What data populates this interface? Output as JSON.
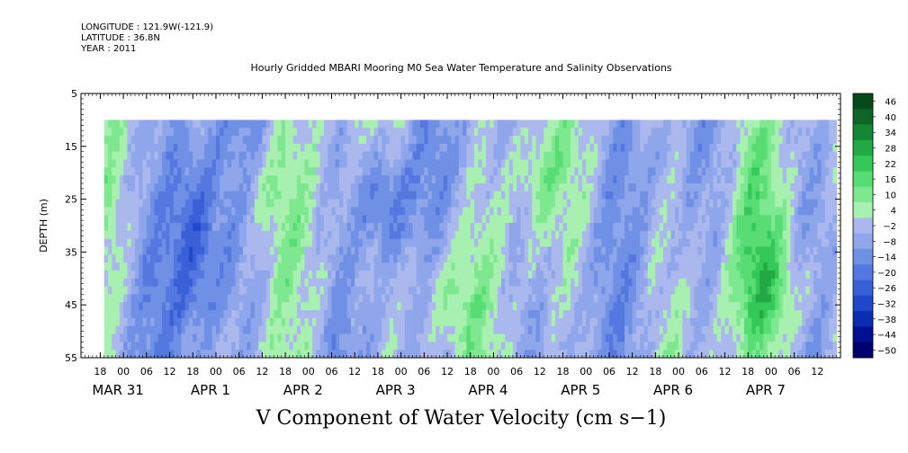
{
  "header": {
    "longitude": "LONGITUDE : 121.9W(-121.9)",
    "latitude": "LATITUDE : 36.8N",
    "year": "YEAR : 2011"
  },
  "chart_data": {
    "type": "heatmap",
    "title": "Hourly Gridded MBARI Mooring M0 Sea Water Temperature and Salinity Observations",
    "xlabel": "V Component of Water Velocity (cm s−1)",
    "ylabel": "DEPTH (m)",
    "grid": false,
    "ylim": [
      55,
      5
    ],
    "y_ticks": [
      5,
      15,
      25,
      35,
      45,
      55
    ],
    "x_range_hours": [
      "2011-03-30T13:00",
      "2011-04-07T18:00"
    ],
    "data_range_hours": [
      "2011-03-30T19:00",
      "2011-04-07T17:00"
    ],
    "depth_range_data": [
      10,
      55
    ],
    "x_hour_labels": [
      "18",
      "00",
      "06",
      "12",
      "18",
      "00",
      "06",
      "12",
      "18",
      "00",
      "06",
      "12",
      "18",
      "00",
      "06",
      "12",
      "18",
      "00",
      "06",
      "12",
      "18",
      "00",
      "06",
      "12",
      "18",
      "00",
      "06",
      "12",
      "18",
      "00",
      "06",
      "12"
    ],
    "x_day_labels": [
      "MAR 31",
      "APR  1",
      "APR  2",
      "APR  3",
      "APR  4",
      "APR  5",
      "APR  6",
      "APR  7"
    ],
    "colorbar": {
      "levels": [
        -50,
        -44,
        -38,
        -32,
        -26,
        -20,
        -14,
        -8,
        -2,
        4,
        10,
        16,
        22,
        28,
        34,
        40,
        46
      ],
      "labels": [
        "46",
        "40",
        "34",
        "28",
        "22",
        "16",
        "10",
        "4",
        "−2",
        "−8",
        "−14",
        "−20",
        "−26",
        "−32",
        "−38",
        "−44",
        "−50"
      ],
      "colors": [
        "#000070",
        "#001090",
        "#0a2cb0",
        "#2048c8",
        "#3a60d8",
        "#5578e0",
        "#7090e6",
        "#8fa6ea",
        "#aab8ee",
        "#a8f0b0",
        "#7ee890",
        "#58dc74",
        "#34c858",
        "#22a844",
        "#158634",
        "#0d6628",
        "#074a1a"
      ]
    },
    "features": [
      {
        "start_hour": 22,
        "end_hour": 36,
        "depth_from": 10,
        "depth_to": 55,
        "value": -20
      },
      {
        "start_hour": 40,
        "end_hour": 54,
        "depth_from": 10,
        "depth_to": 35,
        "value": 8
      },
      {
        "start_hour": 72,
        "end_hour": 84,
        "depth_from": 15,
        "depth_to": 35,
        "value": -18
      },
      {
        "start_hour": 84,
        "end_hour": 102,
        "depth_from": 30,
        "depth_to": 55,
        "value": 12
      },
      {
        "start_hour": 112,
        "end_hour": 124,
        "depth_from": 10,
        "depth_to": 30,
        "value": 12
      },
      {
        "start_hour": 168,
        "end_hour": 182,
        "depth_from": 10,
        "depth_to": 55,
        "value": 10
      },
      {
        "start_hour": 170,
        "end_hour": 192,
        "depth_from": 30,
        "depth_to": 55,
        "value": 14
      }
    ]
  }
}
